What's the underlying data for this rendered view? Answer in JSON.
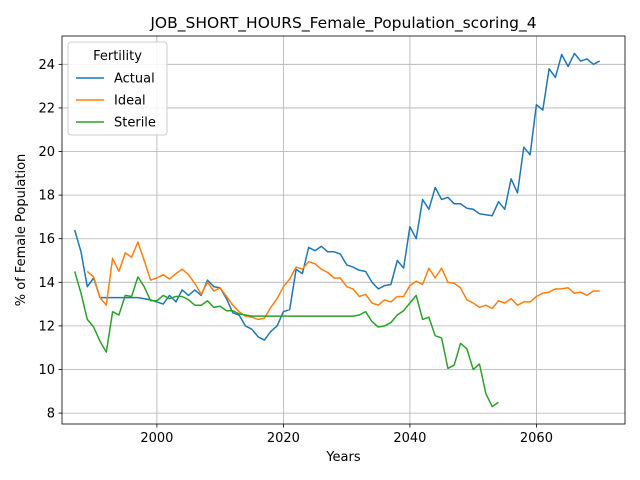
{
  "chart_data": {
    "type": "line",
    "title": "JOB_SHORT_HOURS_Female_Population_scoring_4",
    "xlabel": "Years",
    "ylabel": "% of Female Population",
    "xlim": [
      1985,
      2074
    ],
    "ylim": [
      7.5,
      25.3
    ],
    "xticks": [
      2000,
      2020,
      2040,
      2060
    ],
    "yticks": [
      8,
      10,
      12,
      14,
      16,
      18,
      20,
      22,
      24
    ],
    "grid": true,
    "legend": {
      "title": "Fertility",
      "placement": "top-left"
    },
    "series": [
      {
        "name": "Actual",
        "color": "#1f77b4",
        "x": [
          1987,
          1988,
          1989,
          1990,
          1991,
          1992,
          1993,
          1994,
          1995,
          1996,
          1997,
          1998,
          1999,
          2000,
          2001,
          2002,
          2003,
          2004,
          2005,
          2006,
          2007,
          2008,
          2009,
          2010,
          2011,
          2012,
          2013,
          2014,
          2015,
          2016,
          2017,
          2018,
          2019,
          2020,
          2021,
          2022,
          2023,
          2024,
          2025,
          2026,
          2027,
          2028,
          2029,
          2030,
          2031,
          2032,
          2033,
          2034,
          2035,
          2036,
          2037,
          2038,
          2039,
          2040,
          2041,
          2042,
          2043,
          2044,
          2045,
          2046,
          2047,
          2048,
          2049,
          2050,
          2051,
          2052,
          2053,
          2054,
          2055,
          2056,
          2057,
          2058,
          2059,
          2060,
          2061,
          2062,
          2063,
          2064,
          2065,
          2066,
          2067,
          2068,
          2069,
          2070
        ],
        "y": [
          16.4,
          15.4,
          13.8,
          14.2,
          13.3,
          13.3,
          13.3,
          13.3,
          13.3,
          13.3,
          13.3,
          13.25,
          13.2,
          13.1,
          13.0,
          13.4,
          13.1,
          13.65,
          13.4,
          13.65,
          13.4,
          14.1,
          13.8,
          13.75,
          13.25,
          12.6,
          12.5,
          12.0,
          11.85,
          11.5,
          11.35,
          11.75,
          12.0,
          12.65,
          12.75,
          14.6,
          14.4,
          15.6,
          15.45,
          15.65,
          15.4,
          15.4,
          15.3,
          14.8,
          14.7,
          14.55,
          14.5,
          14.0,
          13.7,
          13.85,
          13.9,
          15.0,
          14.65,
          16.55,
          16.0,
          17.8,
          17.35,
          18.35,
          17.8,
          17.9,
          17.6,
          17.6,
          17.4,
          17.35,
          17.15,
          17.1,
          17.05,
          17.7,
          17.35,
          18.75,
          18.1,
          20.2,
          19.85,
          22.15,
          21.9,
          23.8,
          23.4,
          24.45,
          23.9,
          24.5,
          24.15,
          24.25,
          24.0,
          24.15
        ]
      },
      {
        "name": "Ideal",
        "color": "#ff7f0e",
        "x": [
          1989,
          1990,
          1991,
          1992,
          1993,
          1994,
          1995,
          1996,
          1997,
          1998,
          1999,
          2000,
          2001,
          2002,
          2003,
          2004,
          2005,
          2006,
          2007,
          2008,
          2009,
          2010,
          2011,
          2012,
          2013,
          2014,
          2015,
          2016,
          2017,
          2018,
          2019,
          2020,
          2021,
          2022,
          2023,
          2024,
          2025,
          2026,
          2027,
          2028,
          2029,
          2030,
          2031,
          2032,
          2033,
          2034,
          2035,
          2036,
          2037,
          2038,
          2039,
          2040,
          2041,
          2042,
          2043,
          2044,
          2045,
          2046,
          2047,
          2048,
          2049,
          2050,
          2051,
          2052,
          2053,
          2054,
          2055,
          2056,
          2057,
          2058,
          2059,
          2060,
          2061,
          2062,
          2063,
          2064,
          2065,
          2066,
          2067,
          2068,
          2069,
          2070
        ],
        "y": [
          14.5,
          14.25,
          13.3,
          12.95,
          15.1,
          14.5,
          15.35,
          15.15,
          15.85,
          15.0,
          14.1,
          14.2,
          14.35,
          14.15,
          14.4,
          14.6,
          14.35,
          13.95,
          13.45,
          14.0,
          13.6,
          13.75,
          13.35,
          12.95,
          12.65,
          12.45,
          12.4,
          12.3,
          12.35,
          12.85,
          13.25,
          13.8,
          14.15,
          14.7,
          14.6,
          14.95,
          14.85,
          14.6,
          14.45,
          14.2,
          14.2,
          13.8,
          13.7,
          13.35,
          13.45,
          13.05,
          12.95,
          13.2,
          13.1,
          13.35,
          13.35,
          13.85,
          14.05,
          13.9,
          14.65,
          14.2,
          14.65,
          14.0,
          13.95,
          13.75,
          13.2,
          13.05,
          12.85,
          12.95,
          12.8,
          13.15,
          13.05,
          13.25,
          12.95,
          13.1,
          13.1,
          13.35,
          13.5,
          13.55,
          13.7,
          13.7,
          13.75,
          13.5,
          13.55,
          13.4,
          13.6,
          13.6
        ]
      },
      {
        "name": "Sterile",
        "color": "#2ca02c",
        "x": [
          1987,
          1988,
          1989,
          1990,
          1991,
          1992,
          1993,
          1994,
          1995,
          1996,
          1997,
          1998,
          1999,
          2000,
          2001,
          2002,
          2003,
          2004,
          2005,
          2006,
          2007,
          2008,
          2009,
          2010,
          2011,
          2012,
          2013,
          2014,
          2015,
          2016,
          2017,
          2018,
          2019,
          2020,
          2021,
          2022,
          2023,
          2024,
          2025,
          2026,
          2027,
          2028,
          2029,
          2030,
          2031,
          2032,
          2033,
          2034,
          2035,
          2036,
          2037,
          2038,
          2039,
          2040,
          2041,
          2042,
          2043,
          2044,
          2045,
          2046,
          2047,
          2048,
          2049,
          2050,
          2051,
          2052,
          2053,
          2054
        ],
        "y": [
          14.5,
          13.5,
          12.3,
          11.95,
          11.3,
          10.8,
          12.65,
          12.5,
          13.4,
          13.35,
          14.25,
          13.8,
          13.15,
          13.15,
          13.4,
          13.25,
          13.35,
          13.35,
          13.2,
          12.95,
          12.95,
          13.15,
          12.85,
          12.9,
          12.7,
          12.7,
          12.55,
          12.5,
          12.45,
          12.45,
          12.45,
          12.45,
          12.45,
          12.45,
          12.45,
          12.45,
          12.45,
          12.45,
          12.45,
          12.45,
          12.45,
          12.45,
          12.45,
          12.45,
          12.45,
          12.5,
          12.65,
          12.2,
          11.95,
          12.0,
          12.15,
          12.5,
          12.7,
          13.05,
          13.4,
          12.3,
          12.4,
          11.55,
          11.45,
          10.05,
          10.2,
          11.2,
          10.95,
          10.0,
          10.25,
          8.9,
          8.3,
          8.5
        ]
      }
    ]
  }
}
